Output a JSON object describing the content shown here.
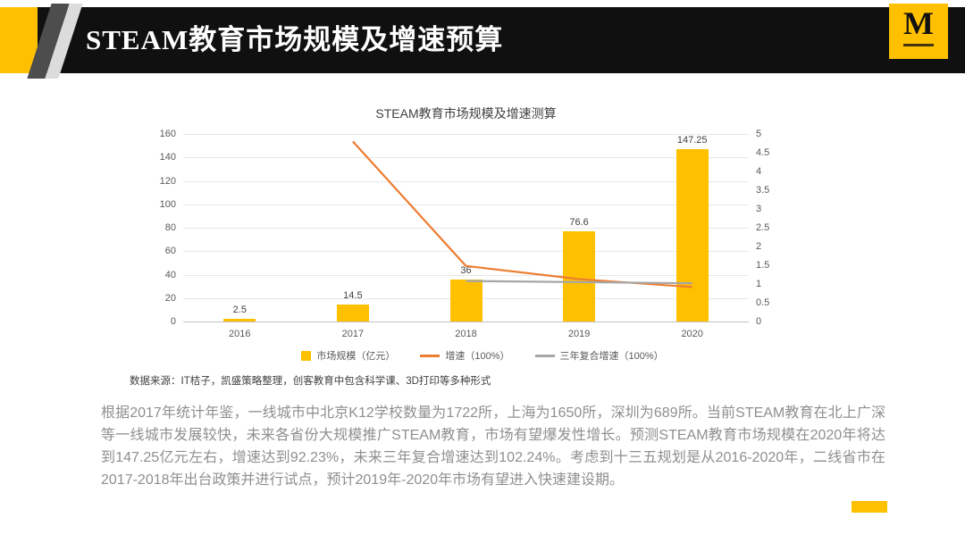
{
  "header": {
    "title": "STEAM教育市场规模及增速预算",
    "logo_letter": "M"
  },
  "colors": {
    "accent": "#FFC000",
    "header_background": "#101010",
    "bar": "#FFC000",
    "growth_line": "#ED7D31",
    "cagr_line": "#A6A6A6"
  },
  "chart_data": {
    "type": "bar",
    "title": "STEAM教育市场规模及增速测算",
    "categories": [
      "2016",
      "2017",
      "2018",
      "2019",
      "2020"
    ],
    "series": [
      {
        "name": "市场规模（亿元）",
        "type": "bar",
        "axis": "left",
        "color": "#FFC000",
        "values": [
          2.5,
          14.5,
          36,
          76.6,
          147.25
        ],
        "labels": [
          "2.5",
          "14.5",
          "36",
          "76.6",
          "147.25"
        ]
      },
      {
        "name": "增速（100%）",
        "type": "line",
        "axis": "right",
        "color": "#ED7D31",
        "values": [
          null,
          4.8,
          1.48,
          1.13,
          0.92
        ]
      },
      {
        "name": "三年复合增速（100%）",
        "type": "line",
        "axis": "right",
        "color": "#A6A6A6",
        "values": [
          null,
          null,
          1.08,
          1.05,
          1.02
        ]
      }
    ],
    "left_axis": {
      "min": 0,
      "max": 160,
      "step": 20,
      "ticks": [
        "0",
        "20",
        "40",
        "60",
        "80",
        "100",
        "120",
        "140",
        "160"
      ]
    },
    "right_axis": {
      "min": 0,
      "max": 5,
      "step": 0.5,
      "ticks": [
        "0",
        "0.5",
        "1",
        "1.5",
        "2",
        "2.5",
        "3",
        "3.5",
        "4",
        "4.5",
        "5"
      ]
    },
    "grid": true,
    "legend_position": "bottom"
  },
  "source_note": "数据来源：IT桔子，凯盛策略整理，创客教育中包含科学课、3D打印等多种形式",
  "body_paragraph": "根据2017年统计年鉴，一线城市中北京K12学校数量为1722所，上海为1650所，深圳为689所。当前STEAM教育在北上广深等一线城市发展较快，未来各省份大规模推广STEAM教育，市场有望爆发性增长。预测STEAM教育市场规模在2020年将达到147.25亿元左右，增速达到92.23%，未来三年复合增速达到102.24%。考虑到十三五规划是从2016-2020年，二线省市在2017-2018年出台政策并进行试点，预计2019年-2020年市场有望进入快速建设期。"
}
